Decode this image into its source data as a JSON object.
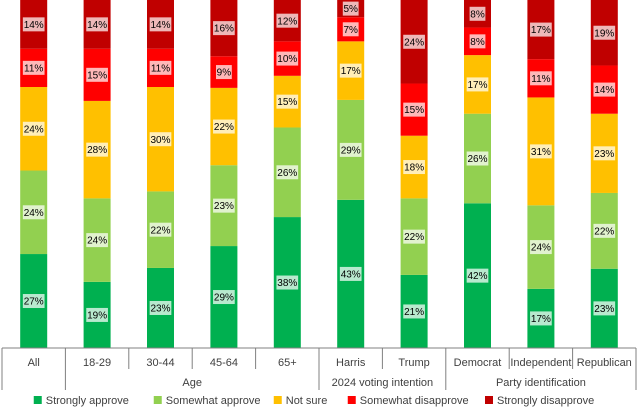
{
  "chart_data": {
    "type": "bar",
    "stacked": true,
    "normalized_percent": true,
    "categories": [
      "All",
      "18-29",
      "30-44",
      "45-64",
      "65+",
      "Harris",
      "Trump",
      "Democrat",
      "Independent",
      "Republican"
    ],
    "groups": [
      {
        "label": "Age",
        "categories": [
          "18-29",
          "30-44",
          "45-64",
          "65+"
        ]
      },
      {
        "label": "2024 voting intention",
        "categories": [
          "Harris",
          "Trump"
        ]
      },
      {
        "label": "Party identification",
        "categories": [
          "Democrat",
          "Independent",
          "Republican"
        ]
      }
    ],
    "series": [
      {
        "name": "Strongly approve",
        "color": "#00b050",
        "values": [
          27,
          19,
          23,
          29,
          38,
          43,
          21,
          42,
          17,
          23
        ]
      },
      {
        "name": "Somewhat approve",
        "color": "#92d050",
        "values": [
          24,
          24,
          22,
          23,
          26,
          29,
          22,
          26,
          24,
          22
        ]
      },
      {
        "name": "Not sure",
        "color": "#ffc000",
        "values": [
          24,
          28,
          30,
          22,
          15,
          17,
          18,
          17,
          31,
          23
        ]
      },
      {
        "name": "Somewhat disapprove",
        "color": "#ff0000",
        "values": [
          11,
          15,
          11,
          9,
          10,
          7,
          15,
          8,
          11,
          14
        ]
      },
      {
        "name": "Strongly disapprove",
        "color": "#c00000",
        "values": [
          14,
          14,
          14,
          16,
          12,
          5,
          24,
          8,
          17,
          19
        ]
      }
    ],
    "labels": [
      [
        "27%",
        "19%",
        "23%",
        "29%",
        "38%",
        "43%",
        "21%",
        "42%",
        "17%",
        "23%"
      ],
      [
        "24%",
        "24%",
        "22%",
        "23%",
        "26%",
        "29%",
        "22%",
        "26%",
        "24%",
        "22%"
      ],
      [
        "24%",
        "28%",
        "30%",
        "22%",
        "15%",
        "17%",
        "18%",
        "17%",
        "31%",
        "23%"
      ],
      [
        "11%",
        "15%",
        "11%",
        "9%",
        "10%",
        "7%",
        "15%",
        "8%",
        "11%",
        "14%"
      ],
      [
        "14%",
        "14%",
        "14%",
        "16%",
        "12%",
        "5%",
        "24%",
        "8%",
        "17%",
        "19%"
      ]
    ],
    "ylim": [
      0,
      100
    ],
    "legend_position": "bottom"
  }
}
